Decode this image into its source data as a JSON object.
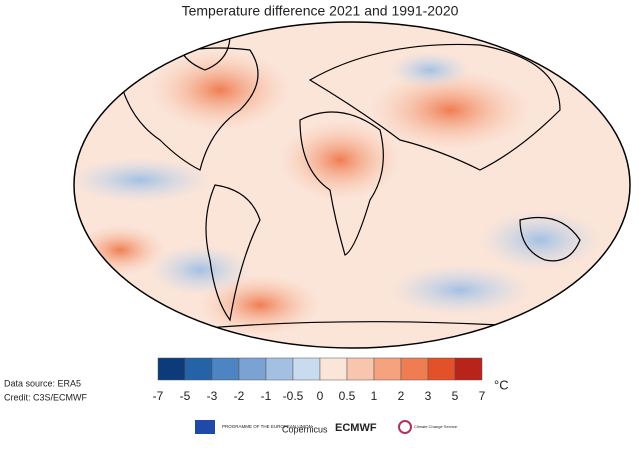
{
  "title": "Temperature difference 2021 and 1991-2020",
  "colorbar": {
    "unit": "°C",
    "ticks": [
      -7,
      -5,
      -3,
      -2,
      -1,
      -0.5,
      0,
      0.5,
      1,
      2,
      3,
      5,
      7
    ],
    "colors": [
      "#0d3a78",
      "#2563a8",
      "#4d84c2",
      "#7aa3d3",
      "#a3c0e3",
      "#c9dbef",
      "#fbe4d8",
      "#f8c6ae",
      "#f5a37f",
      "#f07d52",
      "#e3512a",
      "#b8231a"
    ]
  },
  "source": "Data source: ERA5",
  "credit": "Credit: C3S/ECMWF",
  "logos": {
    "eu": "PROGRAMME OF THE EUROPEAN UNION",
    "copernicus": "Copernicus",
    "ecmwf": "ECMWF",
    "c3s": "Climate Change Service"
  }
}
